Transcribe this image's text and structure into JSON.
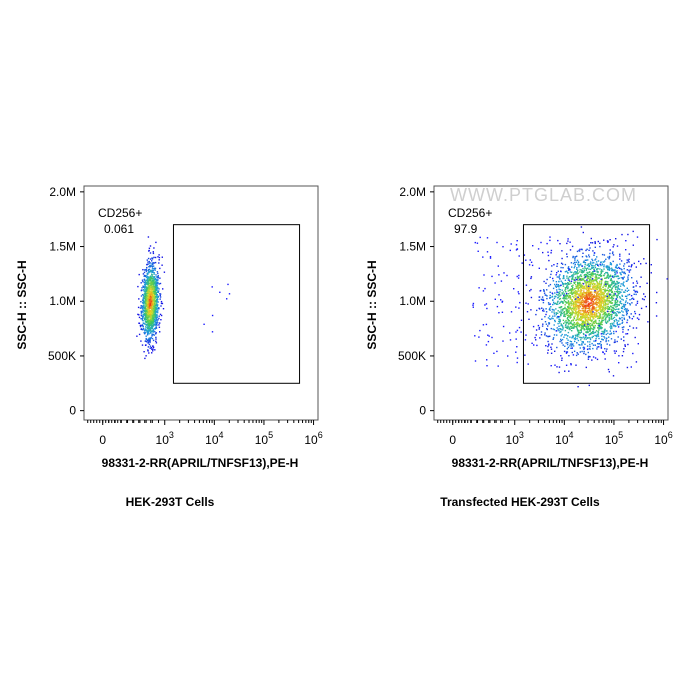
{
  "chart_data": [
    {
      "type": "scatter",
      "title": "HEK-293T Cells",
      "xlabel": "98331-2-RR(APRIL/TNFSF13),PE-H",
      "ylabel": "SSC-H :: SSC-H",
      "xscale": "biexponential",
      "x_ticks": [
        "0",
        "10^3",
        "10^4",
        "10^5",
        "10^6"
      ],
      "y_ticks": [
        "0",
        "500K",
        "1.0M",
        "1.5M",
        "2.0M"
      ],
      "ylim": [
        0,
        2000000
      ],
      "gate": {
        "name": "CD256+",
        "value": "0.061",
        "x_range": [
          1500,
          1000000
        ],
        "y_range": [
          250000,
          1700000
        ]
      },
      "population": {
        "x_center": 500,
        "y_center": 1000000,
        "x_spread": "narrow",
        "y_range": [
          500000,
          1550000
        ]
      },
      "watermark": ""
    },
    {
      "type": "scatter",
      "title": "Transfected HEK-293T Cells",
      "xlabel": "98331-2-RR(APRIL/TNFSF13),PE-H",
      "ylabel": "SSC-H :: SSC-H",
      "xscale": "biexponential",
      "x_ticks": [
        "0",
        "10^3",
        "10^4",
        "10^5",
        "10^6"
      ],
      "y_ticks": [
        "0",
        "500K",
        "1.0M",
        "1.5M",
        "2.0M"
      ],
      "ylim": [
        0,
        2000000
      ],
      "gate": {
        "name": "CD256+",
        "value": "97.9",
        "x_range": [
          1500,
          1000000
        ],
        "y_range": [
          250000,
          1700000
        ]
      },
      "population": {
        "x_center": 30000,
        "y_center": 1000000,
        "x_spread": "wide",
        "y_range": [
          450000,
          1600000
        ]
      },
      "watermark": "WWW.PTGLAB.COM"
    }
  ],
  "colors": {
    "low": "#1a1aff",
    "mid": "#20c0c0",
    "high_mid": "#40d040",
    "high": "#ff3300"
  }
}
